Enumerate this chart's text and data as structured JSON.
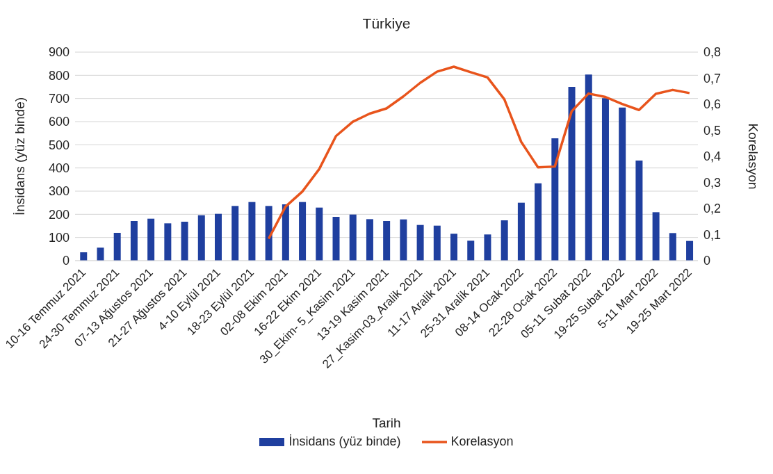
{
  "chart_data": {
    "type": "bar",
    "title": "Türkiye",
    "xlabel": "Tarih",
    "ylabel": "İnsidans (yüz binde)",
    "y2label": "Korelasyon",
    "categories": [
      "10-16 Temmuz 2021",
      null,
      "24-30 Temmuz 2021",
      null,
      "07-13 Ağustos 2021",
      null,
      "21-27 Ağustos 2021",
      null,
      "4-10 Eylül 2021",
      null,
      "18-23 Eylül 2021",
      null,
      "02-08 Ekim 2021",
      null,
      "16-22 Ekim 2021",
      null,
      "30_Ekim- 5_Kasim 2021",
      null,
      "13-19 Kasim 2021",
      null,
      "27_Kasim-03_Aralik 2021",
      null,
      "11-17 Aralik 2021",
      null,
      "25-31 Aralik 2021",
      null,
      "08-14 Ocak 2022",
      null,
      "22-28 Ocak 2022",
      null,
      "05-11 Subat 2022",
      null,
      "19-25 Subat 2022",
      null,
      "5-11 Mart 2022",
      null,
      "19-25 Mart 2022"
    ],
    "series": [
      {
        "name": "İnsidans (yüz binde)",
        "color": "#1f3f9f",
        "values": [
          36,
          56,
          120,
          171,
          181,
          161,
          168,
          196,
          202,
          236,
          253,
          236,
          243,
          253,
          229,
          189,
          199,
          179,
          171,
          178,
          154,
          151,
          116,
          86,
          113,
          174,
          250,
          334,
          528,
          750,
          803,
          701,
          661,
          432,
          209,
          119,
          85
        ]
      },
      {
        "name": "Korelasyon",
        "type": "line",
        "axis": "y2",
        "color": "#e8541c",
        "values": [
          null,
          null,
          null,
          null,
          null,
          null,
          null,
          null,
          null,
          null,
          null,
          0.084,
          0.207,
          0.265,
          0.351,
          0.478,
          0.533,
          0.564,
          0.584,
          0.63,
          0.682,
          0.725,
          0.744,
          0.723,
          0.703,
          0.619,
          0.456,
          0.358,
          0.361,
          0.573,
          0.641,
          0.628,
          0.601,
          0.578,
          0.64,
          0.655,
          0.643
        ]
      }
    ],
    "ylim": [
      0,
      900
    ],
    "yticks": [
      0,
      100,
      200,
      300,
      400,
      500,
      600,
      700,
      800,
      900
    ],
    "y2lim": [
      0,
      0.8
    ],
    "y2ticks": [
      {
        "value": 0,
        "label": "0"
      },
      {
        "value": 0.1,
        "label": "0,1"
      },
      {
        "value": 0.2,
        "label": "0,2"
      },
      {
        "value": 0.3,
        "label": "0,3"
      },
      {
        "value": 0.4,
        "label": "0,4"
      },
      {
        "value": 0.5,
        "label": "0,5"
      },
      {
        "value": 0.6,
        "label": "0,6"
      },
      {
        "value": 0.7,
        "label": "0,7"
      },
      {
        "value": 0.8,
        "label": "0,8"
      }
    ],
    "grid": "y",
    "legend": "bottom",
    "marker": "none"
  }
}
